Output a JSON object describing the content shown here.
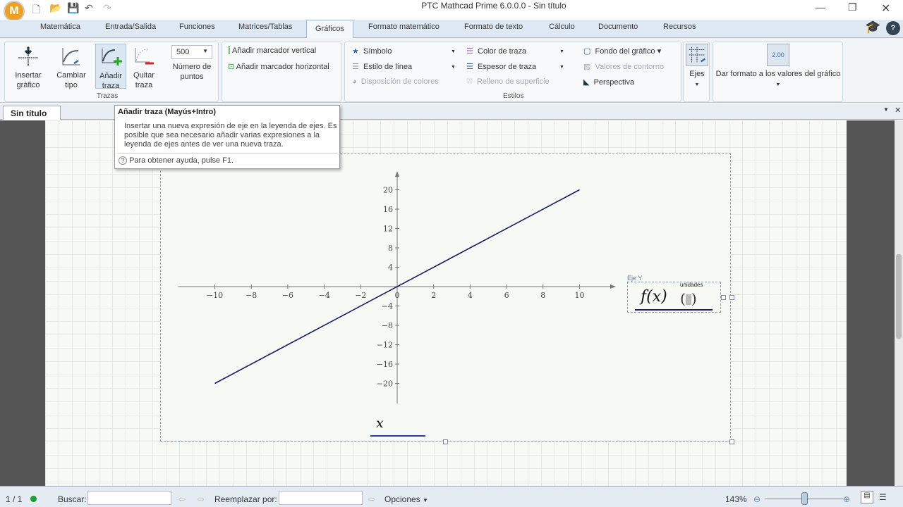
{
  "window": {
    "title": "PTC Mathcad Prime 6.0.0.0 - Sin título",
    "app_logo": "M"
  },
  "tabs": [
    "Matemática",
    "Entrada/Salida",
    "Funciones",
    "Matrices/Tablas",
    "Gráficos",
    "Formato matemático",
    "Formato de texto",
    "Cálculo",
    "Documento",
    "Recursos"
  ],
  "active_tab": "Gráficos",
  "ribbon": {
    "insert_chart": "Insertar gráfico",
    "change_type": "Cambiar tipo",
    "add_trace": "Añadir traza",
    "remove_trace": "Quitar traza",
    "num_points_value": "500",
    "num_points_label": "Número de puntos",
    "traces_group": "Trazas",
    "add_vmarker": "Añadir marcador vertical",
    "add_hmarker": "Añadir marcador horizontal",
    "symbol": "Símbolo",
    "line_style": "Estilo de línea",
    "color_scheme": "Disposición de colores",
    "trace_color": "Color de traza",
    "trace_weight": "Espesor de traza",
    "surface_fill": "Relleno de superficie",
    "plot_background": "Fondo del gráfico",
    "contour_values": "Valores de contorno",
    "perspective": "Perspectiva",
    "styles_group": "Estilos",
    "axes": "Ejes",
    "format_values": "Dar formato a los valores del gráfico",
    "format_icon_text": "2.00"
  },
  "tooltip": {
    "title": "Añadir traza (Mayús+Intro)",
    "body": "Insertar una nueva expresión de eje en la leyenda de ejes. Es posible que sea necesario añadir varias expresiones a la leyenda de ejes antes de ver una nueva traza.",
    "help": "Para obtener ayuda, pulse F1."
  },
  "document_tab": "Sin título",
  "plot": {
    "y_axis_caption": "Eje Y",
    "y_expr": "f(x)",
    "units_label": "unidades",
    "x_expr": "x",
    "trace_color": "#1a1a6e",
    "chart_data": {
      "type": "line",
      "xlim": [
        -10,
        10
      ],
      "ylim": [
        -20,
        20
      ],
      "x_ticks": [
        -10,
        -8,
        -6,
        -4,
        -2,
        0,
        2,
        4,
        6,
        8,
        10
      ],
      "y_ticks": [
        -20,
        -16,
        -12,
        -8,
        -4,
        4,
        8,
        12,
        16,
        20
      ],
      "series": [
        {
          "x": [
            -10,
            10
          ],
          "y": [
            -20,
            20
          ]
        }
      ],
      "grid": false
    }
  },
  "status": {
    "page": "1 / 1",
    "search_label": "Buscar:",
    "replace_label": "Reemplazar por:",
    "options": "Opciones",
    "zoom": "143%",
    "zoom_fraction": 0.5
  }
}
